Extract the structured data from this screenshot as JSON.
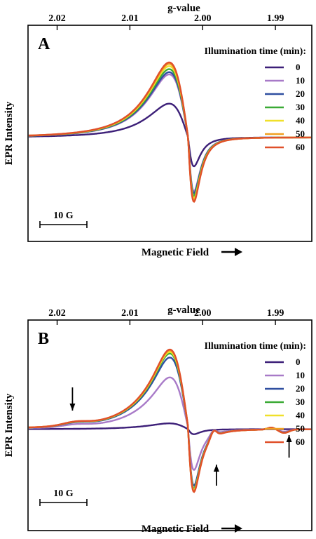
{
  "chart_data": [
    {
      "type": "line",
      "panel_label": "A",
      "top_axis_label": "g-value",
      "top_ticks": [
        "2.02",
        "2.01",
        "2.00",
        "1.99"
      ],
      "top_tick_values": [
        2.02,
        2.01,
        2.0,
        1.99
      ],
      "xlim_g": [
        2.024,
        1.985
      ],
      "ylabel": "EPR Intensity",
      "xlabel": "Magnetic Field",
      "scale_bar_label": "10 G",
      "legend_title": "Illumination time (min):",
      "legend_position": "top-right",
      "ylim": [
        -1.3,
        1.4
      ],
      "center_g": 2.002,
      "pos_peak_g": 2.0046,
      "neg_peak_g": 2.0012,
      "series": [
        {
          "name": "0",
          "color": "#3c1f78",
          "amplitude": 0.45
        },
        {
          "name": "10",
          "color": "#a87ac8",
          "amplitude": 0.84
        },
        {
          "name": "20",
          "color": "#2f4fa0",
          "amplitude": 0.87
        },
        {
          "name": "30",
          "color": "#3aaa35",
          "amplitude": 0.91
        },
        {
          "name": "40",
          "color": "#f0e02a",
          "amplitude": 0.95
        },
        {
          "name": "50",
          "color": "#f0a020",
          "amplitude": 0.98
        },
        {
          "name": "60",
          "color": "#e0502a",
          "amplitude": 1.0
        }
      ]
    },
    {
      "type": "line",
      "panel_label": "B",
      "top_axis_label": "g-value",
      "top_ticks": [
        "2.02",
        "2.01",
        "2.00",
        "1.99"
      ],
      "top_tick_values": [
        2.02,
        2.01,
        2.0,
        1.99
      ],
      "xlim_g": [
        2.024,
        1.985
      ],
      "ylabel": "EPR Intensity",
      "xlabel": "Magnetic Field",
      "scale_bar_label": "10 G",
      "legend_title": "Illumination time (min):",
      "legend_position": "top-right",
      "ylim": [
        -1.3,
        1.4
      ],
      "center_g": 2.002,
      "pos_peak_g": 2.0046,
      "neg_peak_g": 2.0012,
      "arrows_g": [
        2.0177,
        1.9983,
        1.9887
      ],
      "series": [
        {
          "name": "0",
          "color": "#3c1f78",
          "amplitude": 0.08
        },
        {
          "name": "10",
          "color": "#a87ac8",
          "amplitude": 0.65
        },
        {
          "name": "20",
          "color": "#2f4fa0",
          "amplitude": 0.9
        },
        {
          "name": "30",
          "color": "#3aaa35",
          "amplitude": 0.95
        },
        {
          "name": "40",
          "color": "#f0e02a",
          "amplitude": 0.97
        },
        {
          "name": "50",
          "color": "#f0a020",
          "amplitude": 0.99
        },
        {
          "name": "60",
          "color": "#e0502a",
          "amplitude": 1.0
        }
      ]
    }
  ]
}
